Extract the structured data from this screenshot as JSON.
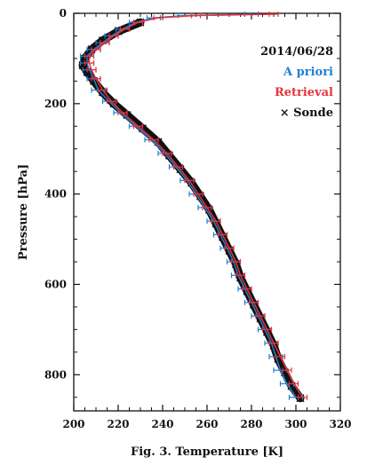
{
  "chart_data": {
    "type": "line",
    "title": "",
    "xlabel": "Fig. 3. Temperature [K]",
    "ylabel": "Pressure [hPa]",
    "xlim": [
      200,
      320
    ],
    "ylim": [
      0,
      880
    ],
    "y_inverted": true,
    "xticks": [
      200,
      220,
      240,
      260,
      280,
      300,
      320
    ],
    "yticks": [
      0,
      200,
      400,
      600,
      800
    ],
    "legend": {
      "position": "top-right",
      "date": "2014/06/28",
      "entries": [
        {
          "label": "A priori",
          "color": "#1f7fd6"
        },
        {
          "label": "Retrieval",
          "color": "#e8323c"
        },
        {
          "label": "× Sonde",
          "color": "#111111"
        }
      ]
    },
    "series": [
      {
        "name": "A priori",
        "color": "#1f7fd6",
        "style": "line-with-xerr",
        "points": [
          [
            280,
            2
          ],
          [
            250,
            5
          ],
          [
            236,
            10
          ],
          [
            228,
            20
          ],
          [
            222,
            35
          ],
          [
            217,
            50
          ],
          [
            213,
            65
          ],
          [
            209,
            80
          ],
          [
            206,
            95
          ],
          [
            206,
            110
          ],
          [
            207,
            125
          ],
          [
            209,
            145
          ],
          [
            211,
            170
          ],
          [
            216,
            195
          ],
          [
            221,
            220
          ],
          [
            228,
            250
          ],
          [
            235,
            280
          ],
          [
            241,
            310
          ],
          [
            246,
            340
          ],
          [
            251,
            370
          ],
          [
            255,
            400
          ],
          [
            259,
            430
          ],
          [
            263,
            460
          ],
          [
            266,
            490
          ],
          [
            269,
            520
          ],
          [
            272,
            550
          ],
          [
            274,
            580
          ],
          [
            277,
            610
          ],
          [
            280,
            640
          ],
          [
            283,
            670
          ],
          [
            286,
            700
          ],
          [
            289,
            730
          ],
          [
            291,
            760
          ],
          [
            293,
            790
          ],
          [
            296,
            820
          ],
          [
            300,
            850
          ]
        ],
        "xerr": 3
      },
      {
        "name": "Retrieval",
        "color": "#e8323c",
        "style": "line-with-xerr",
        "points": [
          [
            290,
            2
          ],
          [
            255,
            5
          ],
          [
            238,
            10
          ],
          [
            229,
            20
          ],
          [
            223,
            35
          ],
          [
            218,
            50
          ],
          [
            214,
            65
          ],
          [
            210,
            80
          ],
          [
            207,
            95
          ],
          [
            207,
            110
          ],
          [
            208,
            125
          ],
          [
            210,
            145
          ],
          [
            213,
            170
          ],
          [
            217,
            195
          ],
          [
            222,
            220
          ],
          [
            229,
            250
          ],
          [
            236,
            280
          ],
          [
            242,
            310
          ],
          [
            247,
            340
          ],
          [
            252,
            370
          ],
          [
            256,
            400
          ],
          [
            260,
            430
          ],
          [
            264,
            460
          ],
          [
            267,
            490
          ],
          [
            270,
            520
          ],
          [
            273,
            550
          ],
          [
            275,
            580
          ],
          [
            278,
            610
          ],
          [
            281,
            640
          ],
          [
            284,
            670
          ],
          [
            287,
            700
          ],
          [
            290,
            730
          ],
          [
            293,
            760
          ],
          [
            296,
            790
          ],
          [
            299,
            820
          ],
          [
            303,
            850
          ]
        ],
        "xerr": 2
      },
      {
        "name": "Sonde",
        "color": "#111111",
        "style": "thick-markers",
        "points": [
          [
            230,
            20
          ],
          [
            220,
            40
          ],
          [
            213,
            60
          ],
          [
            208,
            80
          ],
          [
            205,
            100
          ],
          [
            204,
            115
          ],
          [
            206,
            130
          ],
          [
            209,
            150
          ],
          [
            213,
            175
          ],
          [
            218,
            200
          ],
          [
            224,
            225
          ],
          [
            231,
            255
          ],
          [
            238,
            285
          ],
          [
            243,
            315
          ],
          [
            248,
            345
          ],
          [
            253,
            375
          ],
          [
            257,
            405
          ],
          [
            261,
            435
          ],
          [
            264,
            465
          ],
          [
            267,
            495
          ],
          [
            270,
            525
          ],
          [
            273,
            555
          ],
          [
            275,
            585
          ],
          [
            278,
            615
          ],
          [
            281,
            645
          ],
          [
            284,
            675
          ],
          [
            287,
            705
          ],
          [
            290,
            735
          ],
          [
            292,
            765
          ],
          [
            295,
            795
          ],
          [
            298,
            825
          ],
          [
            302,
            852
          ]
        ]
      }
    ]
  }
}
